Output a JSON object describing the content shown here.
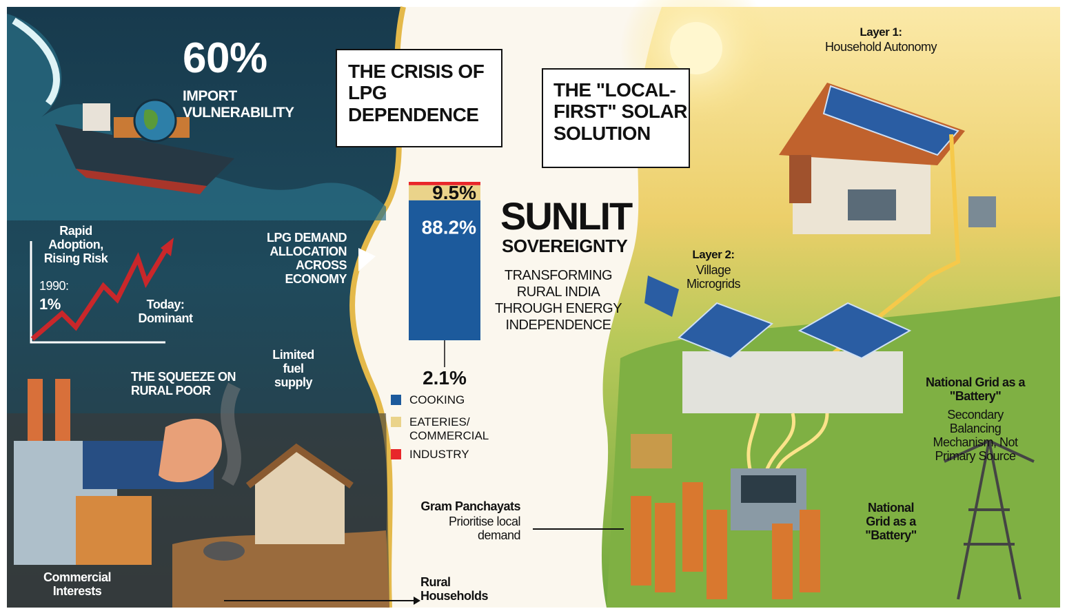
{
  "left": {
    "stat": "60%",
    "stat_label": "IMPORT VULNERABILITY",
    "trend_title": "Rapid Adoption, Rising Risk",
    "start_year": "1990:",
    "start_value": "1%",
    "end_label": "Today: Dominant",
    "squeeze": "THE SQUEEZE ON RURAL POOR",
    "fuel": "Limited fuel supply",
    "commercial": "Commercial Interests",
    "households": "Rural Households"
  },
  "crisis_title": "THE CRISIS OF LPG DEPENDENCE",
  "chart_data": {
    "type": "stacked-bar",
    "title": "LPG DEMAND ALLOCATION ACROSS ECONOMY",
    "categories": [
      null
    ],
    "series": [
      {
        "name": "COOKING",
        "color": "#1c5a9c",
        "values": [
          88.2
        ],
        "value_labels": [
          "88.2%"
        ]
      },
      {
        "name": "EATERIES/ COMMERCIAL",
        "color": "#ead38a",
        "values": [
          9.5
        ],
        "value_labels": [
          "9.5%"
        ]
      },
      {
        "name": "INDUSTRY",
        "color": "#e8262a",
        "values": [
          2.1
        ],
        "value_labels": [
          "2.1%"
        ]
      }
    ]
  },
  "center": {
    "title": "SUNLIT",
    "subtitle": "SOVEREIGNTY",
    "tagline": "TRANSFORMING RURAL INDIA THROUGH ENERGY INDEPENDENCE",
    "gram_title": "Gram Panchayats",
    "gram_text": "Prioritise local demand"
  },
  "right": {
    "title": "THE \"LOCAL-FIRST\" SOLAR SOLUTION",
    "layer1_title": "Layer 1:",
    "layer1_text": "Household Autonomy",
    "layer2_title": "Layer 2:",
    "layer2_text": "Village Microgrids",
    "grid_title": "National Grid as a \"Battery\"",
    "grid_text": "Secondary Balancing Mechanism, Not Primary Source",
    "grid_label": "National Grid as a \"Battery\""
  }
}
